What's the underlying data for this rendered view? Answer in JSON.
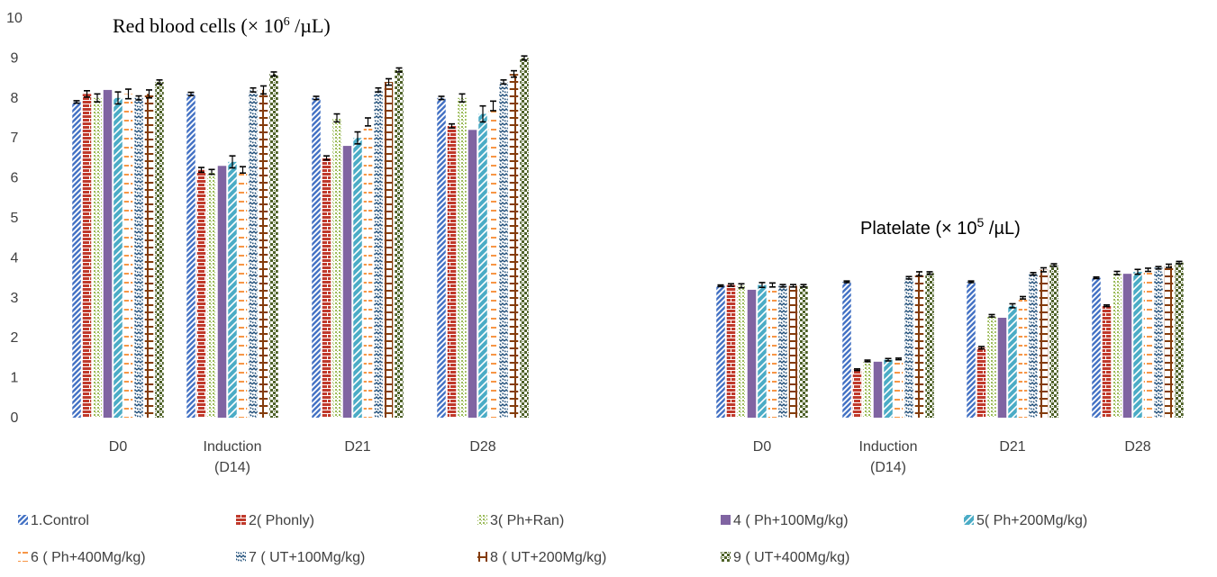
{
  "chart_data": {
    "type": "bar",
    "ylim": [
      0,
      10
    ],
    "yticks": [
      "0",
      "1",
      "2",
      "3",
      "4",
      "5",
      "6",
      "7",
      "8",
      "9",
      "10"
    ],
    "categories": [
      {
        "lines": [
          "D0"
        ]
      },
      {
        "lines": [
          "Induction",
          "(D14)"
        ]
      },
      {
        "lines": [
          "D21"
        ]
      },
      {
        "lines": [
          "D28"
        ]
      }
    ],
    "panels": [
      {
        "title": {
          "main": "Red blood cells (× 10",
          "sup": "6",
          "tail": " /µL)"
        },
        "title_font": "serif",
        "values": [
          [
            7.9,
            8.1,
            8.0,
            8.2,
            8.0,
            8.1,
            8.0,
            8.1,
            8.4
          ],
          [
            8.1,
            6.2,
            6.15,
            6.3,
            6.4,
            6.2,
            8.2,
            8.2,
            8.6
          ],
          [
            8.0,
            6.5,
            7.5,
            6.8,
            7.0,
            7.4,
            8.2,
            8.4,
            8.7
          ],
          [
            8.0,
            7.3,
            8.0,
            7.2,
            7.6,
            7.8,
            8.4,
            8.6,
            9.0
          ]
        ],
        "errors": [
          [
            0.03,
            0.08,
            0.1,
            0.0,
            0.15,
            0.12,
            0.05,
            0.1,
            0.05
          ],
          [
            0.04,
            0.06,
            0.06,
            0.0,
            0.15,
            0.08,
            0.05,
            0.1,
            0.05
          ],
          [
            0.04,
            0.05,
            0.1,
            0.0,
            0.15,
            0.1,
            0.05,
            0.08,
            0.05
          ],
          [
            0.04,
            0.05,
            0.1,
            0.0,
            0.2,
            0.12,
            0.05,
            0.08,
            0.05
          ]
        ]
      },
      {
        "title": {
          "main": "Platelate (× 10",
          "sup": "5",
          "tail": " /µL)"
        },
        "title_font": "sans",
        "values": [
          [
            3.3,
            3.32,
            3.3,
            3.2,
            3.32,
            3.32,
            3.3,
            3.3,
            3.3
          ],
          [
            3.4,
            1.2,
            1.42,
            1.4,
            1.45,
            1.47,
            3.5,
            3.6,
            3.62
          ],
          [
            3.4,
            1.75,
            2.55,
            2.5,
            2.8,
            3.0,
            3.6,
            3.7,
            3.82
          ],
          [
            3.5,
            2.8,
            3.62,
            3.6,
            3.65,
            3.7,
            3.75,
            3.8,
            3.88
          ]
        ],
        "errors": [
          [
            0.02,
            0.03,
            0.05,
            0.0,
            0.06,
            0.05,
            0.03,
            0.03,
            0.03
          ],
          [
            0.02,
            0.02,
            0.02,
            0.0,
            0.03,
            0.02,
            0.03,
            0.05,
            0.03
          ],
          [
            0.02,
            0.03,
            0.03,
            0.0,
            0.05,
            0.03,
            0.03,
            0.05,
            0.03
          ],
          [
            0.02,
            0.02,
            0.04,
            0.0,
            0.06,
            0.04,
            0.03,
            0.04,
            0.03
          ]
        ]
      }
    ],
    "series": [
      {
        "name": "1.Control",
        "color": "#4472C4",
        "pattern": "wide-upward-diagonal"
      },
      {
        "name": "2( Phonly)",
        "color": "#C0392B",
        "pattern": "brick"
      },
      {
        "name": "3( Ph+Ran)",
        "color": "#9BBB59",
        "pattern": "dotted-grid"
      },
      {
        "name": "4 ( Ph+100Mg/kg)",
        "color": "#8064A2",
        "pattern": "solid"
      },
      {
        "name": "5( Ph+200Mg/kg)",
        "color": "#4BACC6",
        "pattern": "wide-diagonal"
      },
      {
        "name": "6 ( Ph+400Mg/kg)",
        "color": "#F79646",
        "pattern": "dashed-horizontal"
      },
      {
        "name": "7  ( UT+100Mg/kg)",
        "color": "#1F4E79",
        "pattern": "zigzag"
      },
      {
        "name": "8 ( UT+200Mg/kg)",
        "color": "#843C0C",
        "pattern": "ladder"
      },
      {
        "name": "9 ( UT+400Mg/kg)",
        "color": "#4F6228",
        "pattern": "checker"
      }
    ],
    "legend_placement": "bottom",
    "grid": false
  }
}
